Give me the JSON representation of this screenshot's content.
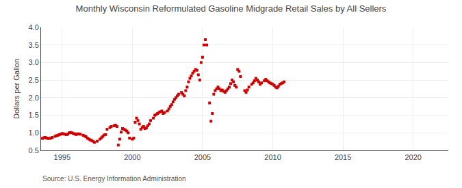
{
  "chart_data": {
    "type": "scatter",
    "title": "Monthly Wisconsin Reformulated Gasoline Midgrade Retail Sales by All Sellers",
    "ylabel": "Dollars per Gallon",
    "annotations": [
      "Source: U.S. Energy Information Administration"
    ],
    "color": "#cc0000",
    "marker": "square",
    "grid": true,
    "xlim": [
      1993.5,
      2022.5
    ],
    "ylim": [
      0.5,
      4.0
    ],
    "xticks": [
      1995,
      2000,
      2005,
      2010,
      2015,
      2020
    ],
    "yticks": [
      0.5,
      {
        "value": 1.0,
        "label": "1.0"
      },
      1.5,
      {
        "value": 2.0,
        "label": "2.0"
      },
      2.5,
      {
        "value": 3.0,
        "label": "3.0"
      },
      3.5,
      {
        "value": 4.0,
        "label": "4.0"
      }
    ],
    "x": [
      1993.6,
      1993.7,
      1993.8,
      1993.9,
      1994.0,
      1994.1,
      1994.2,
      1994.3,
      1994.5,
      1994.6,
      1994.7,
      1994.8,
      1994.9,
      1995.0,
      1995.1,
      1995.2,
      1995.3,
      1995.4,
      1995.5,
      1995.6,
      1995.7,
      1995.8,
      1995.9,
      1996.0,
      1996.1,
      1996.2,
      1996.3,
      1996.5,
      1996.6,
      1996.7,
      1996.8,
      1996.9,
      1997.0,
      1997.1,
      1997.2,
      1997.3,
      1997.5,
      1997.7,
      1997.8,
      1997.9,
      1998.0,
      1998.1,
      1998.2,
      1998.4,
      1998.5,
      1998.7,
      1998.8,
      1998.9,
      1999.0,
      1999.1,
      1999.2,
      1999.3,
      1999.4,
      1999.5,
      1999.6,
      1999.7,
      1999.8,
      2000.0,
      2000.1,
      2000.2,
      2000.3,
      2000.4,
      2000.5,
      2000.6,
      2000.7,
      2000.8,
      2000.9,
      2001.0,
      2001.1,
      2001.2,
      2001.3,
      2001.5,
      2001.6,
      2001.7,
      2001.8,
      2001.9,
      2002.0,
      2002.1,
      2002.2,
      2002.3,
      2002.5,
      2002.6,
      2002.7,
      2002.8,
      2002.9,
      2003.0,
      2003.1,
      2003.2,
      2003.3,
      2003.5,
      2003.6,
      2003.7,
      2003.8,
      2003.9,
      2004.0,
      2004.1,
      2004.2,
      2004.3,
      2004.4,
      2004.5,
      2004.6,
      2004.7,
      2004.8,
      2004.9,
      2005.0,
      2005.1,
      2005.2,
      2005.3,
      2005.5,
      2005.6,
      2005.7,
      2005.8,
      2005.9,
      2006.0,
      2006.1,
      2006.2,
      2006.3,
      2006.4,
      2006.5,
      2006.6,
      2006.7,
      2006.8,
      2006.9,
      2007.0,
      2007.1,
      2007.2,
      2007.3,
      2007.4,
      2007.5,
      2007.6,
      2007.7,
      2008.0,
      2008.1,
      2008.2,
      2008.3,
      2008.5,
      2008.6,
      2008.7,
      2008.8,
      2008.9,
      2009.0,
      2009.1,
      2009.2,
      2009.4,
      2009.5,
      2009.6,
      2009.7,
      2009.8,
      2009.9,
      2010.0,
      2010.1,
      2010.2,
      2010.3,
      2010.4,
      2010.5,
      2010.6,
      2010.7,
      2010.8
    ],
    "values": [
      0.84,
      0.86,
      0.87,
      0.85,
      0.84,
      0.84,
      0.85,
      0.87,
      0.9,
      0.92,
      0.93,
      0.95,
      0.96,
      0.98,
      0.97,
      0.96,
      0.95,
      0.96,
      1.0,
      1.01,
      1.0,
      0.98,
      0.97,
      0.95,
      0.97,
      0.97,
      0.96,
      0.93,
      0.91,
      0.89,
      0.85,
      0.82,
      0.8,
      0.78,
      0.76,
      0.73,
      0.76,
      0.82,
      0.86,
      0.9,
      0.94,
      0.95,
      1.1,
      1.15,
      1.18,
      1.2,
      1.22,
      1.18,
      0.65,
      0.82,
      1.02,
      1.12,
      1.1,
      1.08,
      1.05,
      1.0,
      0.85,
      0.82,
      0.85,
      1.3,
      1.42,
      1.35,
      1.25,
      1.1,
      1.15,
      1.18,
      1.12,
      1.14,
      1.2,
      1.25,
      1.35,
      1.42,
      1.5,
      1.52,
      1.55,
      1.58,
      1.6,
      1.62,
      1.55,
      1.58,
      1.62,
      1.68,
      1.75,
      1.8,
      1.88,
      1.95,
      2.0,
      2.05,
      2.1,
      2.15,
      2.1,
      2.05,
      2.2,
      2.3,
      2.45,
      2.55,
      2.62,
      2.7,
      2.75,
      2.8,
      2.78,
      2.65,
      2.5,
      3.0,
      3.15,
      3.5,
      3.65,
      3.5,
      1.85,
      1.33,
      1.55,
      2.1,
      2.2,
      2.25,
      2.3,
      2.25,
      2.2,
      2.22,
      2.18,
      2.15,
      2.2,
      2.25,
      2.3,
      2.4,
      2.5,
      2.45,
      2.35,
      2.3,
      2.8,
      2.75,
      2.6,
      2.2,
      2.15,
      2.22,
      2.3,
      2.38,
      2.42,
      2.48,
      2.55,
      2.5,
      2.45,
      2.38,
      2.42,
      2.48,
      2.52,
      2.48,
      2.45,
      2.42,
      2.4,
      2.38,
      2.35,
      2.3,
      2.28,
      2.32,
      2.38,
      2.4,
      2.42,
      2.45
    ]
  }
}
